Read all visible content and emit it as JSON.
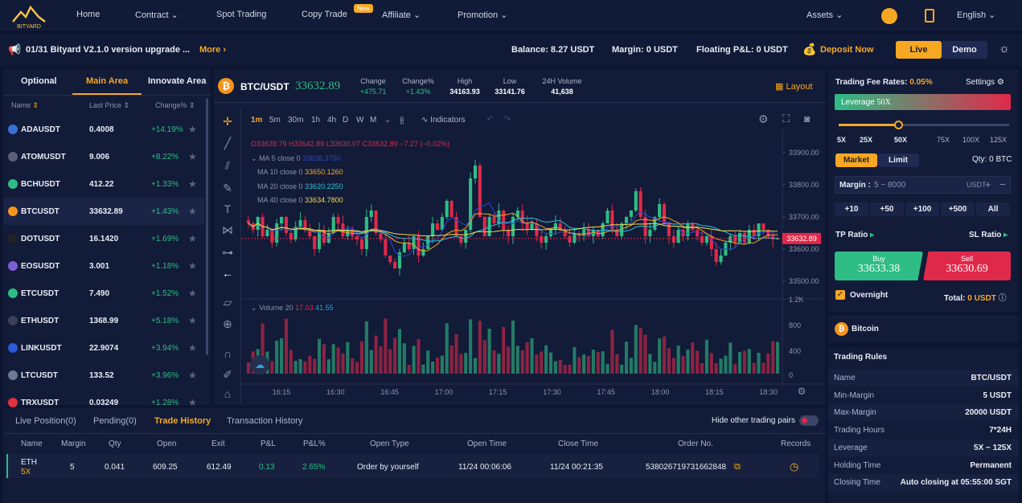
{
  "nav": {
    "logo_text": "BITYARD",
    "items": [
      {
        "label": "Home"
      },
      {
        "label": "Contract"
      },
      {
        "label": "Spot Trading"
      },
      {
        "label": "Copy Trade"
      },
      {
        "label": "Affiliate"
      },
      {
        "label": "Promotion"
      }
    ],
    "new_badge": "New",
    "assets": "Assets",
    "language": "English"
  },
  "notice": {
    "text": "01/31 Bityard V2.1.0 version upgrade ...",
    "more": "More",
    "balance": "Balance: 8.27 USDT",
    "margin": "Margin: 0 USDT",
    "floating": "Floating P&L: 0 USDT",
    "deposit": "Deposit Now",
    "live": "Live",
    "demo": "Demo"
  },
  "market": {
    "tabs": [
      "Optional",
      "Main Area",
      "Innovate Area"
    ],
    "headers": {
      "name": "Name",
      "price": "Last Price",
      "change": "Change%"
    },
    "rows": [
      {
        "name": "ADAUSDT",
        "price": "0.4008",
        "change": "+14.19%",
        "color": "#3a6fd8"
      },
      {
        "name": "ATOMUSDT",
        "price": "9.006",
        "change": "+8.22%",
        "color": "#5b5f78"
      },
      {
        "name": "BCHUSDT",
        "price": "412.22",
        "change": "+1.33%",
        "color": "#2ebd85"
      },
      {
        "name": "BTCUSDT",
        "price": "33632.89",
        "change": "+1.43%",
        "color": "#f7931a"
      },
      {
        "name": "DOTUSDT",
        "price": "16.1420",
        "change": "+1.69%",
        "color": "#222222"
      },
      {
        "name": "EOSUSDT",
        "price": "3.001",
        "change": "+1.18%",
        "color": "#7b5dd6"
      },
      {
        "name": "ETCUSDT",
        "price": "7.490",
        "change": "+1.52%",
        "color": "#2ebd85"
      },
      {
        "name": "ETHUSDT",
        "price": "1368.99",
        "change": "+5.18%",
        "color": "#3a3f55"
      },
      {
        "name": "LINKUSDT",
        "price": "22.9074",
        "change": "+3.94%",
        "color": "#2a5ada"
      },
      {
        "name": "LTCUSDT",
        "price": "133.52",
        "change": "+3.96%",
        "color": "#6d7a96"
      },
      {
        "name": "TRXUSDT",
        "price": "0.03249",
        "change": "+1.28%",
        "color": "#e0323c"
      }
    ]
  },
  "ticker": {
    "pair": "BTC/USDT",
    "price": "33632.89",
    "change_label": "Change",
    "change": "+475.71",
    "changepct_label": "Change%",
    "changepct": "+1.43%",
    "high_label": "High",
    "high": "34163.93",
    "low_label": "Low",
    "low": "33141.76",
    "vol_label": "24H Volume",
    "vol": "41,638",
    "layout": "Layout"
  },
  "chart": {
    "intervals": [
      "1m",
      "5m",
      "30m",
      "1h",
      "4h",
      "D",
      "W",
      "M"
    ],
    "indicators": "Indicators",
    "ohlc": "O33639.79  H33642.89  L33630.07  C33632.89  −7.27 (−0.02%)",
    "ma5": "MA 5 close 0",
    "ma5v": "33636.3750",
    "ma10": "MA 10 close 0",
    "ma10v": "33650.1260",
    "ma20": "MA 20 close 0",
    "ma20v": "33620.2250",
    "ma40": "MA 40 close 0",
    "ma40v": "33634.7800",
    "volume": "Volume 20",
    "vol1": "17.03",
    "vol2": "41.55",
    "price_ticks": [
      "33900.00",
      "33800.00",
      "33700.00",
      "33600.00",
      "33500.00"
    ],
    "current_price_tag": "33632.89",
    "vol_ticks": [
      "1.2K",
      "800",
      "400",
      "0"
    ],
    "time_ticks": [
      "16:15",
      "16:30",
      "16:45",
      "17:00",
      "17:15",
      "17:30",
      "17:45",
      "18:00",
      "18:15",
      "18:30"
    ],
    "colors": {
      "up": "#2ebd85",
      "down": "#e0294a"
    }
  },
  "chart_data": {
    "type": "candlestick",
    "pair": "BTC/USDT",
    "interval": "1m",
    "ylim": [
      33450,
      33950
    ],
    "last_close": 33632.89,
    "x_ticks": [
      "16:15",
      "16:30",
      "16:45",
      "17:00",
      "17:15",
      "17:30",
      "17:45",
      "18:00",
      "18:15",
      "18:30"
    ],
    "closes": [
      33680,
      33660,
      33700,
      33640,
      33660,
      33620,
      33680,
      33700,
      33650,
      33630,
      33670,
      33690,
      33660,
      33640,
      33600,
      33660,
      33620,
      33650,
      33700,
      33680,
      33640,
      33660,
      33640,
      33630,
      33600,
      33700,
      33720,
      33650,
      33630,
      33580,
      33560,
      33540,
      33590,
      33620,
      33600,
      33640,
      33580,
      33600,
      33640,
      33680,
      33660,
      33700,
      33750,
      33700,
      33640,
      33620,
      33660,
      33820,
      33860,
      33700,
      33640,
      33700,
      33680,
      33720,
      33660,
      33640,
      33700,
      33720,
      33680,
      33660,
      33680,
      33640,
      33620,
      33640,
      33660,
      33680,
      33660,
      33640,
      33620,
      33650,
      33640,
      33660,
      33640,
      33660,
      33640,
      33680,
      33720,
      33660,
      33640,
      33680,
      33700,
      33720,
      33780,
      33700,
      33640,
      33660,
      33700,
      33740,
      33680,
      33640,
      33620,
      33660,
      33640,
      33680,
      33660,
      33640,
      33620,
      33640,
      33600,
      33560,
      33580,
      33620,
      33640,
      33620,
      33650,
      33620,
      33660,
      33640,
      33680,
      33660,
      33640,
      33630,
      33632.89
    ]
  },
  "orders": {
    "fee_label": "Trading Fee Rates:",
    "fee": "0.05%",
    "settings": "Settings",
    "leverage_label": "Leverage",
    "leverage_value": "50X",
    "leverage_marks": [
      "5X",
      "25X",
      "50X",
      "75X",
      "100X",
      "125X"
    ],
    "leverage_fraction": 0.35,
    "market": "Market",
    "limit": "Limit",
    "qty": "Qty: 0 BTC",
    "margin_label": "Margin :",
    "margin_placeholder": "5 ~ 8000",
    "margin_unit": "USDT",
    "quick": [
      "+10",
      "+50",
      "+100",
      "+500",
      "All"
    ],
    "tp": "TP Ratio",
    "sl": "SL Ratio",
    "buy": "Buy",
    "buy_price": "33633.38",
    "sell": "Sell",
    "sell_price": "33630.69",
    "overnight": "Overnight",
    "total_label": "Total:",
    "total": "0 USDT"
  },
  "coin": {
    "name": "Bitcoin"
  },
  "rules": {
    "title": "Trading Rules",
    "items": [
      {
        "k": "Name",
        "v": "BTC/USDT"
      },
      {
        "k": "Min-Margin",
        "v": "5 USDT"
      },
      {
        "k": "Max-Margin",
        "v": "20000 USDT"
      },
      {
        "k": "Trading Hours",
        "v": "7*24H"
      },
      {
        "k": "Leverage",
        "v": "5X ~ 125X"
      },
      {
        "k": "Holding Time",
        "v": "Permanent"
      },
      {
        "k": "Closing Time",
        "v": "Auto closing at 05:55:00 SGT"
      }
    ]
  },
  "history": {
    "tabs": [
      "Live Position(0)",
      "Pending(0)",
      "Trade History",
      "Transaction History"
    ],
    "hide_other": "Hide other trading pairs",
    "headers": [
      "Name",
      "Margin",
      "Qty",
      "Open",
      "Exit",
      "P&L",
      "P&L%",
      "Open Type",
      "Open Time",
      "Close Time",
      "Order No.",
      "Records"
    ],
    "row": {
      "name": "ETH",
      "lev": "5X",
      "margin": "5",
      "qty": "0.041",
      "open": "609.25",
      "exit": "612.49",
      "pl": "0.13",
      "plpct": "2.65%",
      "type": "Order by yourself",
      "opentime": "11/24 00:06:06",
      "closetime": "11/24 00:21:35",
      "orderno": "538026719731662848"
    }
  }
}
